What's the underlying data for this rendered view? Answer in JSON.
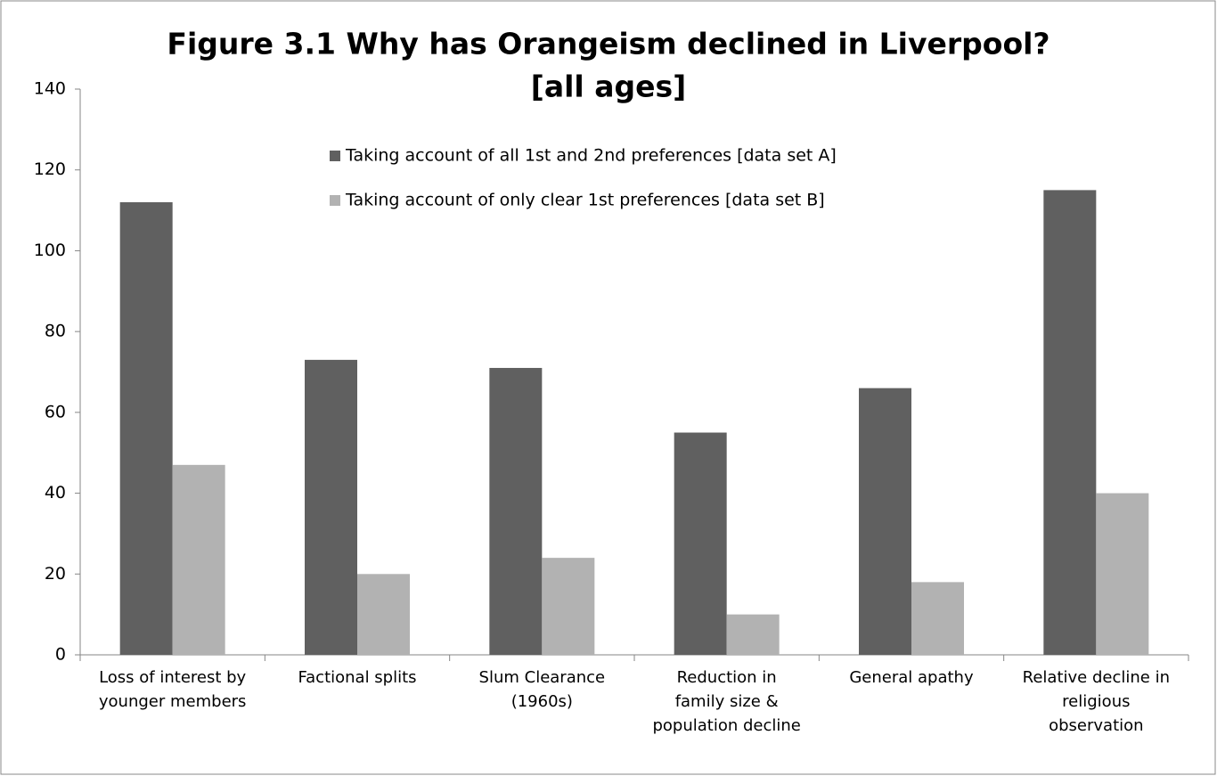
{
  "chart_data": {
    "type": "bar",
    "title": [
      "Figure 3.1 Why has Orangeism declined in Liverpool?",
      "[all ages]"
    ],
    "categories": [
      "Loss of interest by\nyounger members",
      "Factional splits",
      "Slum Clearance\n(1960s)",
      "Reduction in\nfamily size &\npopulation decline",
      "General apathy",
      "Relative decline in\nreligious\nobservation"
    ],
    "series": [
      {
        "name": "Taking account of all 1st and 2nd preferences [data set A]",
        "color": "#606060",
        "values": [
          112,
          73,
          71,
          55,
          66,
          115
        ]
      },
      {
        "name": "Taking account of only clear 1st preferences [data set B]",
        "color": "#b2b2b2",
        "values": [
          47,
          20,
          24,
          10,
          18,
          40
        ]
      }
    ],
    "ylim": [
      0,
      140
    ],
    "yticks": [
      0,
      20,
      40,
      60,
      80,
      100,
      120,
      140
    ],
    "grid": false,
    "legend": "top"
  }
}
